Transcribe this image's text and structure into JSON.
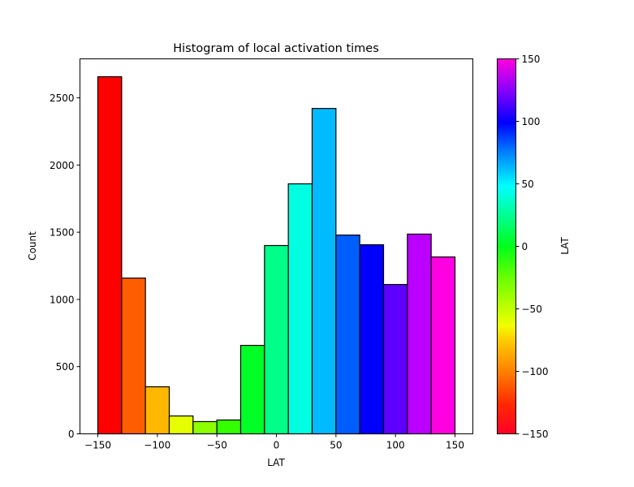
{
  "chart_data": {
    "type": "bar",
    "title": "Histogram of local activation times",
    "xlabel": "LAT",
    "ylabel": "Count",
    "bin_edges": [
      -150,
      -130,
      -110,
      -90,
      -70,
      -50,
      -30,
      -10,
      10,
      30,
      50,
      70,
      90,
      110,
      130,
      150
    ],
    "categories": [
      "-150 to -130",
      "-130 to -110",
      "-110 to -90",
      "-90 to -70",
      "-70 to -50",
      "-50 to -30",
      "-30 to -10",
      "-10 to 10",
      "10 to 30",
      "30 to 50",
      "50 to 70",
      "70 to 90",
      "90 to 110",
      "110 to 130",
      "130 to 150"
    ],
    "values": [
      2657,
      1159,
      350,
      133,
      91,
      103,
      658,
      1401,
      1860,
      2421,
      1479,
      1407,
      1111,
      1486,
      1316
    ],
    "bar_colors": [
      "#ff0000",
      "#ff5e00",
      "#ffb700",
      "#e5ff00",
      "#8cff00",
      "#33ff00",
      "#00ff26",
      "#00ff88",
      "#00ffe1",
      "#00bbff",
      "#005eff",
      "#0000ff",
      "#5e00ff",
      "#bb00ff",
      "#ff00e1"
    ],
    "xlim": [
      -165,
      165
    ],
    "ylim": [
      0,
      2790
    ],
    "xticks": [
      -150,
      -100,
      -50,
      0,
      50,
      100,
      150
    ],
    "xtick_labels": [
      "−150",
      "−100",
      "−50",
      "0",
      "50",
      "100",
      "150"
    ],
    "yticks": [
      0,
      500,
      1000,
      1500,
      2000,
      2500
    ],
    "ytick_labels": [
      "0",
      "500",
      "1000",
      "1500",
      "2000",
      "2500"
    ],
    "grid": false,
    "colorbar": {
      "label": "LAT",
      "range": [
        -150,
        150
      ],
      "colormap": "gist_rainbow",
      "ticks": [
        -150,
        -100,
        -50,
        0,
        50,
        100,
        150
      ],
      "tick_labels": [
        "−150",
        "−100",
        "−50",
        "0",
        "50",
        "100",
        "150"
      ]
    }
  }
}
